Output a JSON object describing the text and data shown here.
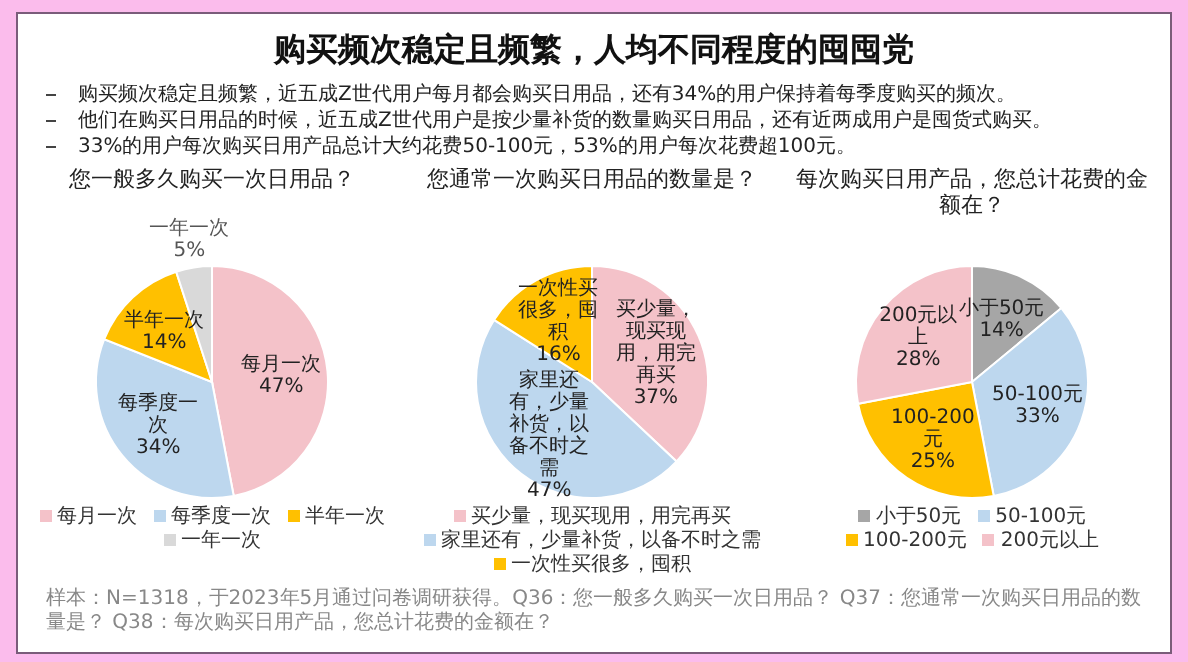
{
  "chart_data": [
    {
      "type": "other",
      "title": "购买频次稳定且频繁，人均不同程度的囤囤党",
      "annotations": [
        "购买频次稳定且频繁，近五成Z世代用户每月都会购买日用品，还有34%的用户保持着每季度购买的频次。",
        "他们在购买日用品的时候，近五成Z世代用户是按少量补货的数量购买日用品，还有近两成用户是囤货式购买。",
        "33%的用户每次购买日用产品总计大约花费50-100元，53%的用户每次花费超100元。",
        "样本：N=1318，于2023年5月通过问卷调研获得。Q36：您一般多久购买一次日用品？ Q37：您通常一次购买日用品的数量是？ Q38：每次购买日用产品，您总计花费的金额在？"
      ]
    },
    {
      "type": "pie",
      "title": "您一般多久购买一次日用品？",
      "categories": [
        "每月一次",
        "每季度一次",
        "半年一次",
        "一年一次"
      ],
      "values": [
        47,
        34,
        14,
        5
      ],
      "value_labels": [
        "47%",
        "34%",
        "14%",
        "5%"
      ],
      "colors": [
        "#f4c2c9",
        "#bdd7ee",
        "#ffc000",
        "#d9d9d9"
      ],
      "legend": "bottom"
    },
    {
      "type": "pie",
      "title": "您通常一次购买日用品的数量是？",
      "categories": [
        "买少量，现买现用，用完再买",
        "家里还有，少量补货，以备不时之需",
        "一次性买很多，囤积"
      ],
      "values": [
        37,
        47,
        16
      ],
      "value_labels": [
        "37%",
        "47%",
        "16%"
      ],
      "colors": [
        "#f4c2c9",
        "#bdd7ee",
        "#ffc000"
      ],
      "legend": "bottom"
    },
    {
      "type": "pie",
      "title": "每次购买日用产品，您总计花费的金额在？",
      "categories": [
        "小于50元",
        "50-100元",
        "100-200元",
        "200元以上"
      ],
      "values": [
        14,
        33,
        25,
        28
      ],
      "value_labels": [
        "14%",
        "33%",
        "25%",
        "28%"
      ],
      "colors": [
        "#a6a6a6",
        "#bdd7ee",
        "#ffc000",
        "#f4c2c9"
      ],
      "legend": "bottom"
    }
  ]
}
